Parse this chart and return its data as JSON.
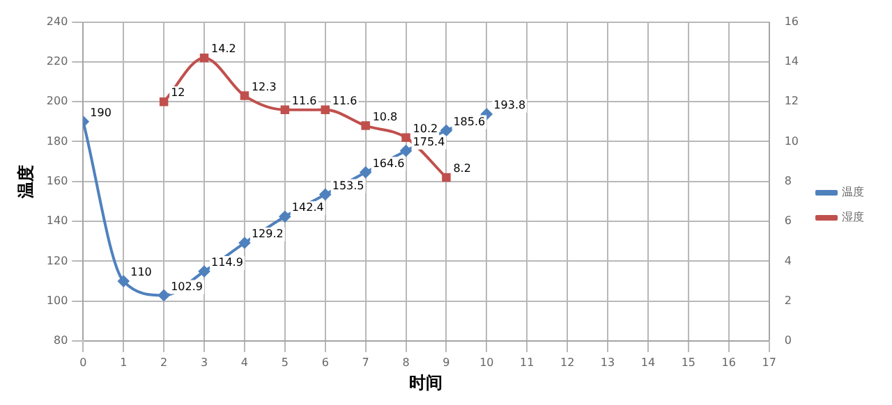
{
  "chart_data": {
    "type": "line",
    "xlabel": "时间",
    "ylabel": "温度",
    "x": [
      0,
      1,
      2,
      3,
      4,
      5,
      6,
      7,
      8,
      9,
      10
    ],
    "series": [
      {
        "name": "温度",
        "color": "#4f81bd",
        "marker": "diamond",
        "values": [
          190,
          110,
          102.9,
          114.9,
          129.2,
          142.4,
          153.5,
          164.6,
          175.4,
          185.6,
          193.8
        ]
      },
      {
        "name": "湿度",
        "color": "#c0504d",
        "marker": "square",
        "axis": "y2",
        "x": [
          2,
          3,
          4,
          5,
          6,
          7,
          8,
          9
        ],
        "values": [
          12,
          14.2,
          12.3,
          11.6,
          11.6,
          10.8,
          10.2,
          8.2
        ]
      }
    ],
    "xlim": [
      0,
      17
    ],
    "xticks": [
      0,
      1,
      2,
      3,
      4,
      5,
      6,
      7,
      8,
      9,
      10,
      11,
      12,
      13,
      14,
      15,
      16,
      17
    ],
    "ylim": [
      80,
      240
    ],
    "yticks": [
      80,
      100,
      120,
      140,
      160,
      180,
      200,
      220,
      240
    ],
    "y2lim": [
      0,
      16
    ],
    "y2ticks": [
      0,
      2,
      4,
      6,
      8,
      10,
      12,
      14,
      16
    ],
    "grid": true,
    "legend": "right",
    "data_labels": true
  }
}
